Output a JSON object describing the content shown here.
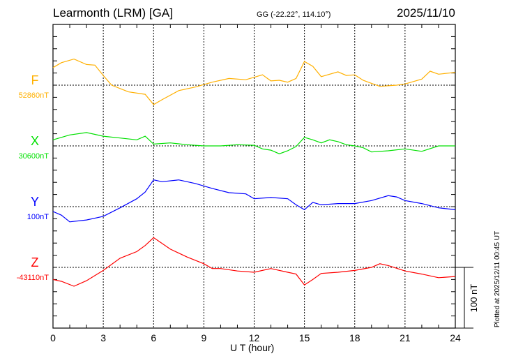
{
  "chart_data": {
    "type": "line",
    "title": "Learmonth (LRM)  [GA]",
    "coords": "GG (-22.22°, 114.10°)",
    "date": "2025/11/10",
    "xlabel": "U T (hour)",
    "xlim": [
      0,
      24
    ],
    "xticks": [
      "0",
      "3",
      "6",
      "9",
      "12",
      "15",
      "18",
      "21",
      "24"
    ],
    "scale_label": "100 nT",
    "plotted_note": "Plotted at 2025/12/11 00:45 UT",
    "units": "nT offset from baseline; 100 nT scale bar",
    "series": [
      {
        "name": "F",
        "baseline_label": "52860nT",
        "color": "#ffb000",
        "x": [
          0,
          0.5,
          1.25,
          2,
          2.5,
          3,
          3.5,
          4.5,
          5.5,
          6,
          6.5,
          7.5,
          8.5,
          9.5,
          10.5,
          11.5,
          12.5,
          13,
          13.5,
          14,
          14.5,
          15,
          15.5,
          16,
          17,
          17.5,
          18,
          18.5,
          19,
          19.5,
          20.5,
          21,
          22,
          22.5,
          23,
          24
        ],
        "y": [
          29,
          37,
          43,
          34,
          33,
          16,
          0,
          -11,
          -15,
          -32,
          -24,
          -9,
          -3,
          5,
          11,
          9,
          17,
          7,
          8,
          5,
          11,
          39,
          31,
          14,
          22,
          16,
          17,
          8,
          3,
          -2,
          0,
          2,
          10,
          23,
          18,
          21
        ]
      },
      {
        "name": "X",
        "baseline_label": "30600nT",
        "color": "#00e000",
        "x": [
          0,
          1,
          2,
          3,
          4,
          5,
          5.5,
          6,
          7,
          8,
          9,
          10,
          11,
          12,
          12.5,
          13,
          13.5,
          14,
          14.5,
          15,
          15.5,
          16,
          16.5,
          17,
          17.5,
          18,
          18.5,
          19,
          20,
          21,
          22,
          23,
          24
        ],
        "y": [
          10,
          18,
          22,
          16,
          13,
          10,
          16,
          3,
          5,
          2,
          0,
          0,
          2,
          1,
          -5,
          -7,
          -13,
          -8,
          -1,
          14,
          10,
          5,
          10,
          7,
          2,
          0,
          -3,
          -10,
          -8,
          -5,
          -9,
          0,
          0
        ]
      },
      {
        "name": "Y",
        "baseline_label": "100nT",
        "color": "#0000ff",
        "x": [
          0,
          0.5,
          1,
          2,
          3,
          4,
          5,
          5.5,
          6,
          6.5,
          7.5,
          8.5,
          9.5,
          10.5,
          11.5,
          12,
          13,
          14,
          14.5,
          15,
          15.5,
          16,
          17,
          18,
          19,
          20,
          20.5,
          21,
          22,
          23,
          24
        ],
        "y": [
          -8,
          -14,
          -25,
          -22,
          -16,
          -2,
          13,
          24,
          44,
          41,
          44,
          38,
          30,
          23,
          21,
          13,
          15,
          13,
          3,
          -5,
          7,
          3,
          5,
          5,
          10,
          18,
          16,
          10,
          5,
          -2,
          -5
        ]
      },
      {
        "name": "Z",
        "baseline_label": "-43110nT",
        "color": "#ff0000",
        "x": [
          0,
          0.5,
          1.25,
          2,
          3,
          4,
          5,
          5.5,
          6,
          7,
          8,
          9,
          9.5,
          10,
          11,
          12,
          13,
          14,
          14.5,
          15,
          15.5,
          16,
          17,
          18,
          19,
          19.5,
          20,
          21,
          22,
          23,
          24
        ],
        "y": [
          -20,
          -23,
          -31,
          -22,
          -5,
          15,
          26,
          36,
          49,
          30,
          17,
          6,
          -2,
          -2,
          -6,
          -8,
          -2,
          -8,
          -11,
          -29,
          -20,
          -10,
          -8,
          -5,
          0,
          6,
          3,
          -6,
          -11,
          -17,
          -15
        ]
      }
    ]
  }
}
